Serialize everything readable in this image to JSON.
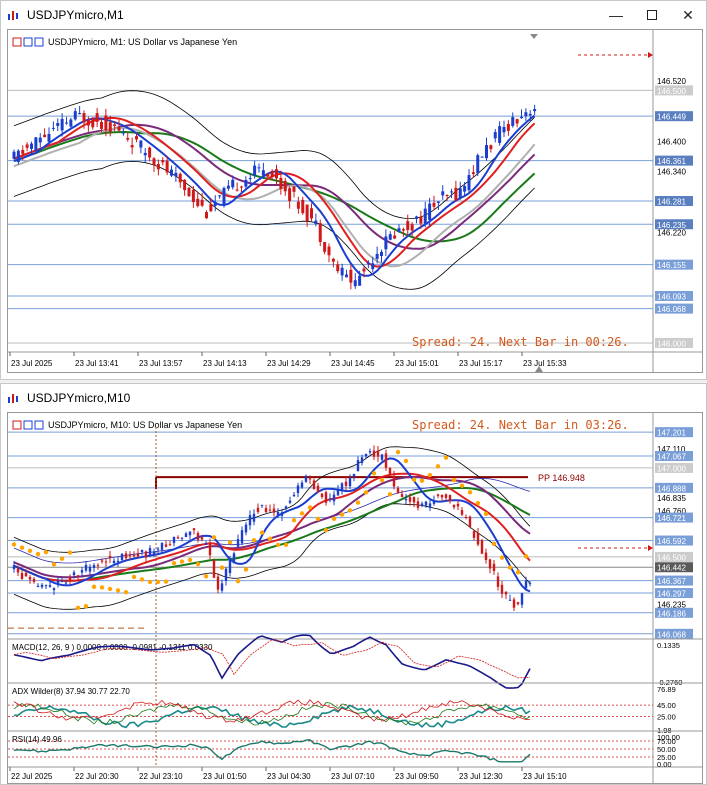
{
  "window1": {
    "title": "USDJPYmicro,M1",
    "chart_header": "USDJPYmicro, M1:  US Dollar vs Japanese Yen",
    "spread_text": "Spread: 24. Next Bar in 00:26.",
    "price_labels": [
      {
        "text": "146.520",
        "price": 146.52,
        "boxed": false
      },
      {
        "text": "146.500",
        "price": 146.5,
        "boxed": true,
        "color": "#cccccc"
      },
      {
        "text": "146.449",
        "price": 146.449,
        "boxed": true,
        "color": "#5a7fc0"
      },
      {
        "text": "146.400",
        "price": 146.4,
        "boxed": false
      },
      {
        "text": "146.361",
        "price": 146.361,
        "boxed": true,
        "color": "#5a7fc0"
      },
      {
        "text": "146.340",
        "price": 146.34,
        "boxed": false
      },
      {
        "text": "146.281",
        "price": 146.281,
        "boxed": true,
        "color": "#5a7fc0"
      },
      {
        "text": "146.235",
        "price": 146.235,
        "boxed": true,
        "color": "#5a7fc0"
      },
      {
        "text": "146.220",
        "price": 146.22,
        "boxed": false
      },
      {
        "text": "146.155",
        "price": 146.155,
        "boxed": true,
        "color": "#7a9fd8"
      },
      {
        "text": "146.093",
        "price": 146.093,
        "boxed": true,
        "color": "#7a9fd8"
      },
      {
        "text": "146.068",
        "price": 146.068,
        "boxed": true,
        "color": "#7a9fd8"
      },
      {
        "text": "146.000",
        "price": 146.0,
        "boxed": true,
        "color": "#cccccc"
      }
    ],
    "time_labels": [
      "23 Jul 2025",
      "23 Jul 13:41",
      "23 Jul 13:57",
      "23 Jul 14:13",
      "23 Jul 14:29",
      "23 Jul 14:45",
      "23 Jul 15:01",
      "23 Jul 15:17",
      "23 Jul 15:33"
    ]
  },
  "window2": {
    "title": "USDJPYmicro,M10",
    "chart_header": "USDJPYmicro, M10:  US Dollar vs Japanese Yen",
    "spread_text": "Spread: 24. Next Bar in 03:26.",
    "pivot_label": "PP 146.948",
    "price_labels": [
      {
        "text": "147.201",
        "price": 147.201,
        "boxed": true,
        "color": "#7a9fd8"
      },
      {
        "text": "147.110",
        "price": 147.11,
        "boxed": false
      },
      {
        "text": "147.067",
        "price": 147.067,
        "boxed": true,
        "color": "#7a9fd8"
      },
      {
        "text": "147.000",
        "price": 147.0,
        "boxed": true,
        "color": "#cccccc"
      },
      {
        "text": "146.888",
        "price": 146.888,
        "boxed": true,
        "color": "#7a9fd8"
      },
      {
        "text": "146.835",
        "price": 146.835,
        "boxed": false
      },
      {
        "text": "146.760",
        "price": 146.76,
        "boxed": false
      },
      {
        "text": "146.721",
        "price": 146.721,
        "boxed": true,
        "color": "#7a9fd8"
      },
      {
        "text": "146.592",
        "price": 146.592,
        "boxed": true,
        "color": "#7a9fd8"
      },
      {
        "text": "146.500",
        "price": 146.5,
        "boxed": true,
        "color": "#cccccc"
      },
      {
        "text": "146.442",
        "price": 146.442,
        "boxed": true,
        "color": "#5a5a5a"
      },
      {
        "text": "146.367",
        "price": 146.367,
        "boxed": true,
        "color": "#7a9fd8"
      },
      {
        "text": "146.297",
        "price": 146.297,
        "boxed": true,
        "color": "#7a9fd8"
      },
      {
        "text": "146.235",
        "price": 146.235,
        "boxed": false
      },
      {
        "text": "146.186",
        "price": 146.186,
        "boxed": true,
        "color": "#7a9fd8"
      },
      {
        "text": "146.068",
        "price": 146.068,
        "boxed": true,
        "color": "#7a9fd8"
      }
    ],
    "macd": {
      "label": "MACD(12, 26, 9 ) 0.0000 0.0000 -0.0981 -0.1311 0.0330",
      "scale": [
        "0.1335",
        "-0.2760"
      ]
    },
    "adx": {
      "label": "ADX Wilder(8) 37.94 30.77 22.70",
      "scale": [
        "76.89",
        "45.00",
        "25.00",
        "1.98"
      ]
    },
    "rsi": {
      "label": "RSI(14) 49.96",
      "scale": [
        "100.00",
        "75.00",
        "50.00",
        "25.00",
        "0.00"
      ]
    },
    "time_labels": [
      "22 Jul 2025",
      "22 Jul 20:30",
      "22 Jul 23:10",
      "23 Jul 01:50",
      "23 Jul 04:30",
      "23 Jul 07:10",
      "23 Jul 09:50",
      "23 Jul 12:30",
      "23 Jul 15:10"
    ]
  },
  "colors": {
    "bull": "#1a3fd0",
    "bear": "#d01818",
    "ma_green": "#1a7a1a",
    "ma_purple": "#7a2a7a",
    "ma_red": "#e02020",
    "ma_blue": "#1a3fd0",
    "ma_gray": "#b0b0b0",
    "sar": "#ffa500",
    "spread": "#d25a1e"
  }
}
